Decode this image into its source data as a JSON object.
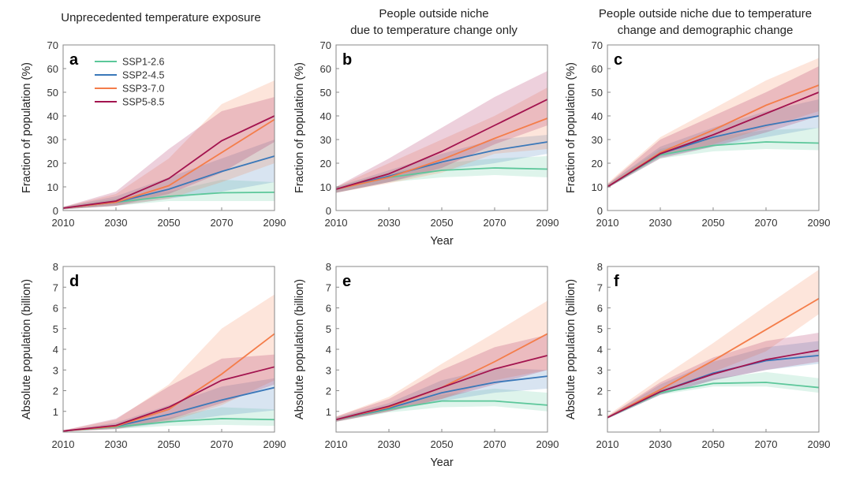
{
  "legend": [
    {
      "name": "SSP1-2.6",
      "color": "#5cc79a"
    },
    {
      "name": "SSP2-4.5",
      "color": "#3a78b9"
    },
    {
      "name": "SSP3-7.0",
      "color": "#f47d4a"
    },
    {
      "name": "SSP5-8.5",
      "color": "#a3144f"
    }
  ],
  "chart_data": [
    {
      "type": "line",
      "panel": "a",
      "title": [
        "Unprecedented temperature exposure"
      ],
      "xlabel": "",
      "ylabel": "Fraction of population (%)",
      "x": [
        2010,
        2030,
        2050,
        2070,
        2090
      ],
      "xticks": [
        "2010",
        "2030",
        "2050",
        "2070",
        "2090"
      ],
      "ylim": [
        0,
        70
      ],
      "yticks": [
        "0",
        "10",
        "20",
        "30",
        "40",
        "50",
        "60",
        "70"
      ],
      "ytick_values": [
        0,
        10,
        20,
        30,
        40,
        50,
        60,
        70
      ],
      "legend_position": "top-left",
      "series": [
        {
          "name": "SSP1-2.6",
          "values": [
            1,
            3.5,
            6,
            7.5,
            7.7
          ],
          "lower": [
            0.5,
            2,
            4,
            4,
            4
          ],
          "upper": [
            1.5,
            5,
            8,
            13,
            12
          ]
        },
        {
          "name": "SSP2-4.5",
          "values": [
            1,
            3.5,
            9,
            16.5,
            23
          ],
          "lower": [
            0.5,
            2,
            5,
            8,
            12
          ],
          "upper": [
            1.5,
            6,
            14,
            22,
            30
          ]
        },
        {
          "name": "SSP3-7.0",
          "values": [
            1,
            3.5,
            10.5,
            24.5,
            38.5
          ],
          "lower": [
            0.5,
            2,
            5,
            12,
            20
          ],
          "upper": [
            1.5,
            7,
            22,
            45,
            55
          ]
        },
        {
          "name": "SSP5-8.5",
          "values": [
            1,
            4,
            13.5,
            29.5,
            40
          ],
          "lower": [
            0.5,
            2,
            7,
            16,
            29
          ],
          "upper": [
            1.5,
            8,
            26,
            42,
            48
          ]
        }
      ]
    },
    {
      "type": "line",
      "panel": "b",
      "title": [
        "People outside niche",
        "due to temperature change only"
      ],
      "xlabel": "Year",
      "ylabel": "Fraction of population (%)",
      "x": [
        2010,
        2030,
        2050,
        2070,
        2090
      ],
      "xticks": [
        "2010",
        "2030",
        "2050",
        "2070",
        "2090"
      ],
      "ylim": [
        0,
        70
      ],
      "yticks": [
        "0",
        "10",
        "20",
        "30",
        "40",
        "50",
        "60",
        "70"
      ],
      "ytick_values": [
        0,
        10,
        20,
        30,
        40,
        50,
        60,
        70
      ],
      "series": [
        {
          "name": "SSP1-2.6",
          "values": [
            9,
            14,
            17,
            18,
            17.5
          ],
          "lower": [
            7.5,
            12,
            14,
            15,
            14
          ],
          "upper": [
            10,
            16,
            20,
            22,
            23
          ]
        },
        {
          "name": "SSP2-4.5",
          "values": [
            9,
            14.5,
            20.5,
            25.5,
            29
          ],
          "lower": [
            7.5,
            12,
            17,
            20,
            24
          ],
          "upper": [
            10,
            17,
            24,
            30,
            32
          ]
        },
        {
          "name": "SSP3-7.0",
          "values": [
            9,
            14,
            21.5,
            30.5,
            39
          ],
          "lower": [
            7.5,
            11.5,
            16,
            24,
            26
          ],
          "upper": [
            10,
            20,
            30,
            40,
            52
          ]
        },
        {
          "name": "SSP5-8.5",
          "values": [
            9,
            15.5,
            25,
            36,
            47
          ],
          "lower": [
            7.5,
            12,
            18,
            28,
            36
          ],
          "upper": [
            10,
            22,
            35,
            48,
            59
          ]
        }
      ]
    },
    {
      "type": "line",
      "panel": "c",
      "title": [
        "People outside niche due to temperature",
        "change and demographic change"
      ],
      "xlabel": "",
      "ylabel": "Fraction of population (%)",
      "x": [
        2010,
        2030,
        2050,
        2070,
        2090
      ],
      "xticks": [
        "2010",
        "2030",
        "2050",
        "2070",
        "2090"
      ],
      "ylim": [
        0,
        70
      ],
      "yticks": [
        "0",
        "10",
        "20",
        "30",
        "40",
        "50",
        "60",
        "70"
      ],
      "ytick_values": [
        0,
        10,
        20,
        30,
        40,
        50,
        60,
        70
      ],
      "series": [
        {
          "name": "SSP1-2.6",
          "values": [
            10,
            23.5,
            27.5,
            29,
            28.5
          ],
          "lower": [
            9.5,
            22,
            25,
            26,
            25.5
          ],
          "upper": [
            11,
            26,
            31,
            34,
            35
          ]
        },
        {
          "name": "SSP2-4.5",
          "values": [
            10,
            24,
            31,
            36,
            40
          ],
          "lower": [
            9.5,
            22.5,
            27,
            31,
            35
          ],
          "upper": [
            11,
            27,
            35,
            42,
            47
          ]
        },
        {
          "name": "SSP3-7.0",
          "values": [
            10,
            24.5,
            34,
            44.5,
            53
          ],
          "lower": [
            9.5,
            23,
            28,
            35,
            42
          ],
          "upper": [
            11.5,
            31,
            43,
            55,
            64.5
          ]
        },
        {
          "name": "SSP5-8.5",
          "values": [
            10,
            24,
            32,
            41,
            50
          ],
          "lower": [
            9.5,
            22,
            27,
            33,
            40
          ],
          "upper": [
            11,
            30,
            40,
            50,
            61
          ]
        }
      ]
    },
    {
      "type": "line",
      "panel": "d",
      "title": [],
      "xlabel": "",
      "ylabel": "Absolute population (billion)",
      "x": [
        2010,
        2030,
        2050,
        2070,
        2090
      ],
      "xticks": [
        "2010",
        "2030",
        "2050",
        "2070",
        "2090"
      ],
      "ylim": [
        0,
        8
      ],
      "yticks": [
        "1",
        "2",
        "3",
        "4",
        "5",
        "6",
        "7",
        "8"
      ],
      "ytick_values": [
        1,
        2,
        3,
        4,
        5,
        6,
        7,
        8
      ],
      "series": [
        {
          "name": "SSP1-2.6",
          "values": [
            0.05,
            0.25,
            0.5,
            0.65,
            0.6
          ],
          "lower": [
            0.03,
            0.15,
            0.3,
            0.35,
            0.3
          ],
          "upper": [
            0.08,
            0.35,
            0.7,
            1.2,
            1.1
          ]
        },
        {
          "name": "SSP2-4.5",
          "values": [
            0.05,
            0.28,
            0.85,
            1.55,
            2.15
          ],
          "lower": [
            0.03,
            0.15,
            0.45,
            0.8,
            1.05
          ],
          "upper": [
            0.08,
            0.45,
            1.3,
            2.2,
            2.6
          ]
        },
        {
          "name": "SSP3-7.0",
          "values": [
            0.05,
            0.28,
            1.1,
            2.8,
            4.75
          ],
          "lower": [
            0.03,
            0.15,
            0.5,
            1.3,
            2.5
          ],
          "upper": [
            0.08,
            0.6,
            2.3,
            5.0,
            6.65
          ]
        },
        {
          "name": "SSP5-8.5",
          "values": [
            0.05,
            0.32,
            1.2,
            2.5,
            3.15
          ],
          "lower": [
            0.03,
            0.15,
            0.6,
            1.4,
            2.3
          ],
          "upper": [
            0.08,
            0.65,
            2.2,
            3.55,
            3.75
          ]
        }
      ]
    },
    {
      "type": "line",
      "panel": "e",
      "title": [],
      "xlabel": "Year",
      "ylabel": "Absolute population (billion)",
      "x": [
        2010,
        2030,
        2050,
        2070,
        2090
      ],
      "xticks": [
        "2010",
        "2030",
        "2050",
        "2070",
        "2090"
      ],
      "ylim": [
        0,
        8
      ],
      "yticks": [
        "1",
        "2",
        "3",
        "4",
        "5",
        "6",
        "7",
        "8"
      ],
      "ytick_values": [
        1,
        2,
        3,
        4,
        5,
        6,
        7,
        8
      ],
      "series": [
        {
          "name": "SSP1-2.6",
          "values": [
            0.6,
            1.1,
            1.5,
            1.5,
            1.3
          ],
          "lower": [
            0.5,
            0.95,
            1.2,
            1.25,
            1.0
          ],
          "upper": [
            0.7,
            1.3,
            1.8,
            2.1,
            1.9
          ]
        },
        {
          "name": "SSP2-4.5",
          "values": [
            0.6,
            1.15,
            1.9,
            2.4,
            2.7
          ],
          "lower": [
            0.5,
            1.0,
            1.5,
            1.9,
            2.1
          ],
          "upper": [
            0.7,
            1.4,
            2.5,
            3.1,
            3.0
          ]
        },
        {
          "name": "SSP3-7.0",
          "values": [
            0.6,
            1.2,
            2.15,
            3.4,
            4.75
          ],
          "lower": [
            0.5,
            1.0,
            1.6,
            2.5,
            3.0
          ],
          "upper": [
            0.75,
            1.7,
            3.3,
            4.8,
            6.35
          ]
        },
        {
          "name": "SSP5-8.5",
          "values": [
            0.6,
            1.25,
            2.15,
            3.05,
            3.7
          ],
          "lower": [
            0.5,
            1.0,
            1.6,
            2.3,
            3.0
          ],
          "upper": [
            0.75,
            1.6,
            3.0,
            4.1,
            4.7
          ]
        }
      ]
    },
    {
      "type": "line",
      "panel": "f",
      "title": [],
      "xlabel": "",
      "ylabel": "Absolute population (billion)",
      "x": [
        2010,
        2030,
        2050,
        2070,
        2090
      ],
      "xticks": [
        "2010",
        "2030",
        "2050",
        "2070",
        "2090"
      ],
      "ylim": [
        0,
        8
      ],
      "yticks": [
        "1",
        "2",
        "3",
        "4",
        "5",
        "6",
        "7",
        "8"
      ],
      "ytick_values": [
        1,
        2,
        3,
        4,
        5,
        6,
        7,
        8
      ],
      "series": [
        {
          "name": "SSP1-2.6",
          "values": [
            0.7,
            1.9,
            2.35,
            2.4,
            2.15
          ],
          "lower": [
            0.65,
            1.8,
            2.2,
            2.2,
            1.9
          ],
          "upper": [
            0.75,
            2.1,
            2.6,
            2.9,
            2.6
          ]
        },
        {
          "name": "SSP2-4.5",
          "values": [
            0.7,
            1.95,
            2.85,
            3.45,
            3.7
          ],
          "lower": [
            0.65,
            1.8,
            2.5,
            3.0,
            3.3
          ],
          "upper": [
            0.75,
            2.3,
            3.4,
            4.1,
            4.4
          ]
        },
        {
          "name": "SSP3-7.0",
          "values": [
            0.7,
            2.05,
            3.45,
            4.95,
            6.45
          ],
          "lower": [
            0.65,
            1.9,
            2.9,
            3.9,
            5.7
          ],
          "upper": [
            0.8,
            2.6,
            4.3,
            6.1,
            7.85
          ]
        },
        {
          "name": "SSP5-8.5",
          "values": [
            0.7,
            1.95,
            2.8,
            3.5,
            3.95
          ],
          "lower": [
            0.65,
            1.8,
            2.5,
            3.0,
            3.4
          ],
          "upper": [
            0.75,
            2.4,
            3.6,
            4.4,
            4.8
          ]
        }
      ]
    }
  ]
}
